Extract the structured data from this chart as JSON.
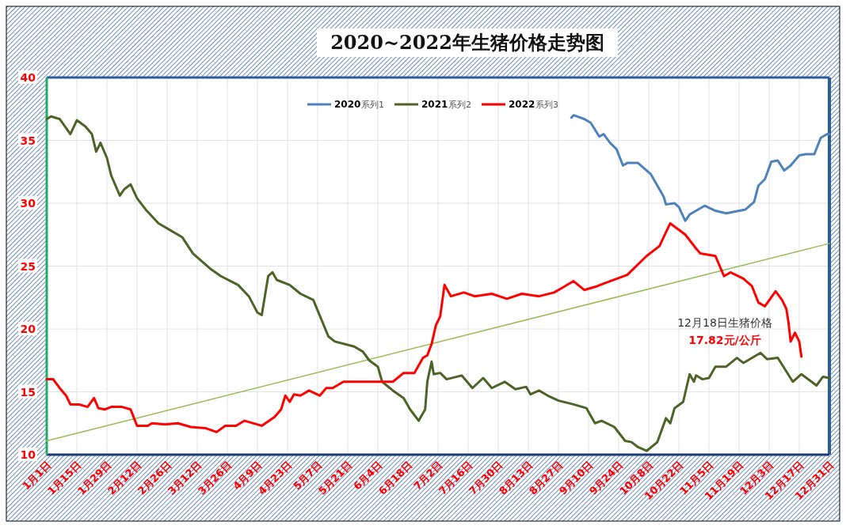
{
  "chart_data": {
    "type": "line",
    "title": "2020~2022年生猪价格走势图",
    "xlim": [
      "--01-01",
      "--12-31"
    ],
    "xticks": [
      {
        "value": "--01-01",
        "label": "1月1日"
      },
      {
        "value": "--01-15",
        "label": "1月15日"
      },
      {
        "value": "--01-29",
        "label": "1月29日"
      },
      {
        "value": "--02-12",
        "label": "2月12日"
      },
      {
        "value": "--02-26",
        "label": "2月26日"
      },
      {
        "value": "--03-12",
        "label": "3月12日"
      },
      {
        "value": "--03-26",
        "label": "3月26日"
      },
      {
        "value": "--04-09",
        "label": "4月9日"
      },
      {
        "value": "--04-23",
        "label": "4月23日"
      },
      {
        "value": "--05-07",
        "label": "5月7日"
      },
      {
        "value": "--05-21",
        "label": "5月21日"
      },
      {
        "value": "--06-04",
        "label": "6月4日"
      },
      {
        "value": "--06-18",
        "label": "6月18日"
      },
      {
        "value": "--07-02",
        "label": "7月2日"
      },
      {
        "value": "--07-16",
        "label": "7月16日"
      },
      {
        "value": "--07-30",
        "label": "7月30日"
      },
      {
        "value": "--08-13",
        "label": "8月13日"
      },
      {
        "value": "--08-27",
        "label": "8月27日"
      },
      {
        "value": "--09-10",
        "label": "9月10日"
      },
      {
        "value": "--09-24",
        "label": "9月24日"
      },
      {
        "value": "--10-08",
        "label": "10月8日"
      },
      {
        "value": "--10-22",
        "label": "10月22日"
      },
      {
        "value": "--11-05",
        "label": "11月5日"
      },
      {
        "value": "--11-19",
        "label": "11月19日"
      },
      {
        "value": "--12-03",
        "label": "12月3日"
      },
      {
        "value": "--12-17",
        "label": "12月17日"
      },
      {
        "value": "--12-31",
        "label": "12月31日"
      }
    ],
    "ylim": [
      10,
      40
    ],
    "yticks": [
      10,
      15,
      20,
      25,
      30,
      35,
      40
    ],
    "grid": true,
    "legend": "top",
    "marker": "none",
    "line_style": "solid",
    "annotations": [
      "12月18日生猪价格",
      "17.82元/公斤",
      "系列1",
      "系列2",
      "系列3"
    ],
    "series": [
      {
        "name": "2020",
        "color": "#4f81bd",
        "x": [
          "--09-02",
          "--09-03",
          "--09-08",
          "--09-11",
          "--09-15",
          "--09-17",
          "--09-20",
          "--09-23",
          "--09-26",
          "--09-28",
          "--10-03",
          "--10-07",
          "--10-09",
          "--10-15",
          "--10-16",
          "--10-20",
          "--10-22",
          "--10-25",
          "--10-27",
          "--11-03",
          "--11-08",
          "--11-13",
          "--11-22",
          "--11-26",
          "--11-28",
          "--12-01",
          "--12-04",
          "--12-07",
          "--12-10",
          "--12-13",
          "--12-17",
          "--12-20",
          "--12-24",
          "--12-27",
          "--12-30",
          "--12-31"
        ],
        "values": [
          36.8,
          37.0,
          36.7,
          36.4,
          35.3,
          35.5,
          34.8,
          34.3,
          33.0,
          33.2,
          33.2,
          32.6,
          32.3,
          30.5,
          29.9,
          30.0,
          29.7,
          28.6,
          29.1,
          29.8,
          29.4,
          29.2,
          29.5,
          30.1,
          31.4,
          31.9,
          33.3,
          33.4,
          32.6,
          33.0,
          33.8,
          33.9,
          33.9,
          35.2,
          35.5,
          35.5
        ]
      },
      {
        "name": "2021",
        "color": "#4f6228",
        "x": [
          "--01-01",
          "--01-03",
          "--01-07",
          "--01-12",
          "--01-15",
          "--01-19",
          "--01-22",
          "--01-24",
          "--01-26",
          "--01-29",
          "--01-31",
          "--02-04",
          "--02-06",
          "--02-09",
          "--02-12",
          "--02-16",
          "--02-22",
          "--02-27",
          "--03-05",
          "--03-10",
          "--03-18",
          "--03-23",
          "--03-31",
          "--04-05",
          "--04-09",
          "--04-11",
          "--04-14",
          "--04-16",
          "--04-18",
          "--04-24",
          "--04-29",
          "--05-05",
          "--05-12",
          "--05-15",
          "--05-24",
          "--05-28",
          "--05-31",
          "--06-04",
          "--06-06",
          "--06-11",
          "--06-16",
          "--06-19",
          "--06-23",
          "--06-26",
          "--06-27",
          "--06-29",
          "--06-30",
          "--07-03",
          "--07-06",
          "--07-13",
          "--07-18",
          "--07-23",
          "--07-27",
          "--08-02",
          "--08-07",
          "--08-12",
          "--08-14",
          "--08-18",
          "--08-22",
          "--08-27",
          "--09-03",
          "--09-09",
          "--09-13",
          "--09-16",
          "--09-22",
          "--09-27",
          "--09-30",
          "--10-03",
          "--10-07",
          "--10-12",
          "--10-16",
          "--10-18",
          "--10-20",
          "--10-24",
          "--10-27",
          "--10-29",
          "--10-30",
          "--11-02",
          "--11-05",
          "--11-08",
          "--11-13",
          "--11-18",
          "--11-21",
          "--11-29",
          "--12-02",
          "--12-07",
          "--12-14",
          "--12-18",
          "--12-25",
          "--12-28",
          "--12-31"
        ],
        "values": [
          36.7,
          36.9,
          36.7,
          35.5,
          36.6,
          36.1,
          35.5,
          34.1,
          34.8,
          33.6,
          32.2,
          30.6,
          31.1,
          31.5,
          30.4,
          29.5,
          28.4,
          27.9,
          27.3,
          26.0,
          24.8,
          24.2,
          23.5,
          22.6,
          21.3,
          21.1,
          24.2,
          24.5,
          23.9,
          23.5,
          22.8,
          22.3,
          19.4,
          19.0,
          18.6,
          18.2,
          17.5,
          17.0,
          15.8,
          15.1,
          14.5,
          13.6,
          12.7,
          13.6,
          15.8,
          17.4,
          16.4,
          16.5,
          16.0,
          16.3,
          15.3,
          16.1,
          15.3,
          15.8,
          15.2,
          15.4,
          14.8,
          15.1,
          14.7,
          14.3,
          14.0,
          13.7,
          12.5,
          12.7,
          12.2,
          11.1,
          11.0,
          10.6,
          10.3,
          11.0,
          12.9,
          12.5,
          13.7,
          14.2,
          16.4,
          15.8,
          16.3,
          16.0,
          16.1,
          17.0,
          17.0,
          17.7,
          17.3,
          18.1,
          17.6,
          17.7,
          15.8,
          16.4,
          15.5,
          16.2,
          16.1
        ]
      },
      {
        "name": "2022",
        "color": "#ff0000",
        "x": [
          "--01-01",
          "--01-04",
          "--01-07",
          "--01-10",
          "--01-12",
          "--01-16",
          "--01-20",
          "--01-23",
          "--01-25",
          "--01-28",
          "--01-31",
          "--02-05",
          "--02-09",
          "--02-12",
          "--02-17",
          "--02-19",
          "--02-25",
          "--03-03",
          "--03-09",
          "--03-16",
          "--03-21",
          "--03-25",
          "--03-30",
          "--04-03",
          "--04-11",
          "--04-17",
          "--04-20",
          "--04-22",
          "--04-24",
          "--04-26",
          "--04-29",
          "--05-03",
          "--05-08",
          "--05-11",
          "--05-14",
          "--05-19",
          "--05-23",
          "--05-27",
          "--06-01",
          "--06-06",
          "--06-11",
          "--06-16",
          "--06-21",
          "--06-25",
          "--06-27",
          "--06-29",
          "--07-01",
          "--07-03",
          "--07-05",
          "--07-08",
          "--07-14",
          "--07-19",
          "--07-27",
          "--08-03",
          "--08-10",
          "--08-18",
          "--08-25",
          "--08-30",
          "--09-03",
          "--09-08",
          "--09-14",
          "--09-20",
          "--09-28",
          "--10-07",
          "--10-13",
          "--10-16",
          "--10-18",
          "--10-25",
          "--10-30",
          "--11-01",
          "--11-08",
          "--11-12",
          "--11-15",
          "--11-21",
          "--11-25",
          "--11-28",
          "--12-01",
          "--12-06",
          "--12-09",
          "--12-11",
          "--12-12",
          "--12-13",
          "--12-15",
          "--12-17",
          "--12-18"
        ],
        "values": [
          16.0,
          16.0,
          15.3,
          14.7,
          14.0,
          14.0,
          13.8,
          14.5,
          13.7,
          13.6,
          13.8,
          13.8,
          13.6,
          12.3,
          12.3,
          12.5,
          12.4,
          12.5,
          12.2,
          12.1,
          11.8,
          12.3,
          12.3,
          12.7,
          12.3,
          13.0,
          13.6,
          14.7,
          14.2,
          14.8,
          14.7,
          15.1,
          14.7,
          15.3,
          15.3,
          15.8,
          15.8,
          15.8,
          15.8,
          15.8,
          15.8,
          16.5,
          16.5,
          17.7,
          17.9,
          18.8,
          20.3,
          21.0,
          23.5,
          22.6,
          22.9,
          22.6,
          22.8,
          22.4,
          22.8,
          22.6,
          22.9,
          23.4,
          23.8,
          23.1,
          23.4,
          23.8,
          24.3,
          25.8,
          26.6,
          27.7,
          28.4,
          27.5,
          26.4,
          26.0,
          25.8,
          24.2,
          24.5,
          24.0,
          23.4,
          22.1,
          21.8,
          23.0,
          22.3,
          21.6,
          20.5,
          19.0,
          19.7,
          19.0,
          17.8
        ]
      },
      {
        "type": "line",
        "color": "#9bbb59",
        "x": [
          "--01-01",
          "--12-31"
        ],
        "values": [
          11.1,
          26.8
        ]
      }
    ]
  }
}
